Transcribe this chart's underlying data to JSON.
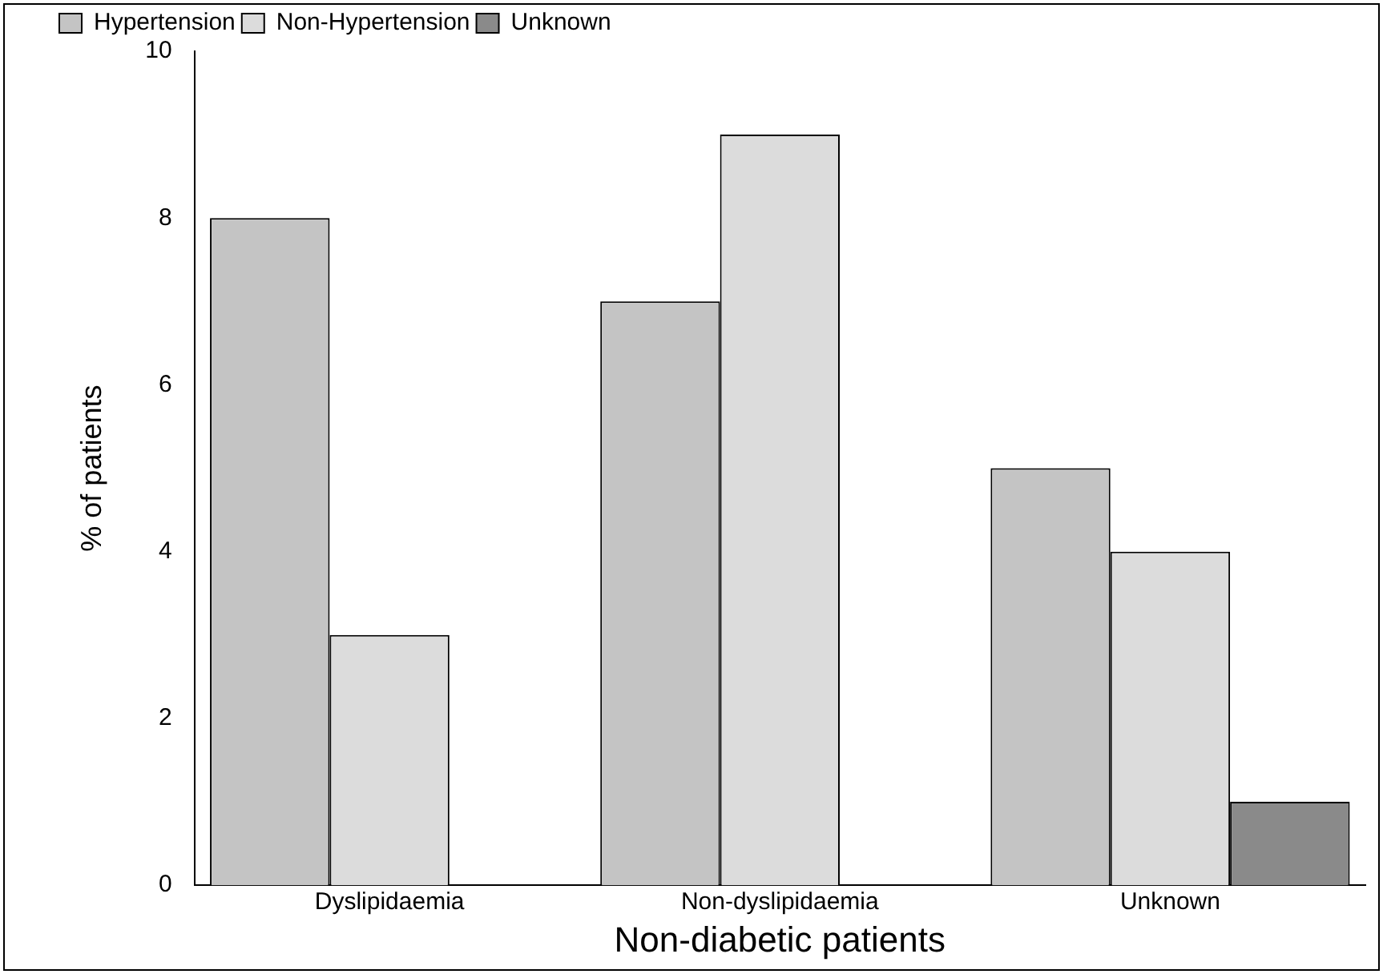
{
  "chart_data": {
    "type": "bar",
    "xlabel": "Non-diabetic patients",
    "ylabel": "% of patients",
    "categories": [
      "Dyslipidaemia",
      "Non-dyslipidaemia",
      "Unknown"
    ],
    "series": [
      {
        "name": "Hypertension",
        "color": "#c4c4c4",
        "values": [
          8,
          7,
          5
        ]
      },
      {
        "name": "Non-Hypertension",
        "color": "#dcdcdc",
        "values": [
          3,
          9,
          4
        ]
      },
      {
        "name": "Unknown",
        "color": "#8a8a8a",
        "values": [
          null,
          null,
          1
        ]
      }
    ],
    "ylim": [
      0,
      10
    ],
    "yticks": [
      0,
      2,
      4,
      6,
      8,
      10
    ],
    "grid": false,
    "legend": "top left"
  }
}
